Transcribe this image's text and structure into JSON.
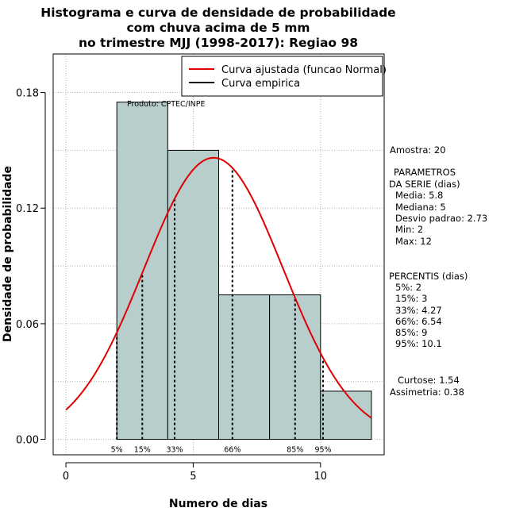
{
  "chart_data": {
    "type": "bar",
    "title": [
      "Histograma e curva de densidade de probabilidade",
      "com chuva acima de 5 mm",
      "no trimestre MJJ (1998-2017): Regiao 98"
    ],
    "xlabel": "Numero de dias",
    "ylabel": "Densidade de probabilidade",
    "xlim": [
      -0.5,
      12.5
    ],
    "ylim": [
      -0.008,
      0.2
    ],
    "x_ticks": [
      0,
      5,
      10
    ],
    "y_ticks": [
      0.0,
      0.06,
      0.12,
      0.18
    ],
    "x_tick_labels": [
      "0",
      "5",
      "10"
    ],
    "y_tick_labels": [
      "0.00",
      "0.06",
      "0.12",
      "0.18"
    ],
    "grid": true,
    "bins": [
      {
        "start": 2,
        "end": 4,
        "density": 0.175
      },
      {
        "start": 4,
        "end": 6,
        "density": 0.15
      },
      {
        "start": 6,
        "end": 8,
        "density": 0.075
      },
      {
        "start": 8,
        "end": 10,
        "density": 0.075
      },
      {
        "start": 10,
        "end": 12,
        "density": 0.025
      }
    ],
    "bar_color": "#b8cecd",
    "normal_fit": {
      "mean": 5.8,
      "sd": 2.73,
      "color": "#e00000",
      "x_range": [
        0,
        12
      ]
    },
    "percentiles": [
      {
        "label": "5%",
        "x": 2
      },
      {
        "label": "15%",
        "x": 3
      },
      {
        "label": "33%",
        "x": 4.27
      },
      {
        "label": "66%",
        "x": 6.54
      },
      {
        "label": "85%",
        "x": 9
      },
      {
        "label": "95%",
        "x": 10.1
      }
    ],
    "legend": [
      {
        "label": "Curva ajustada (funcao Normal)",
        "color": "#e00000"
      },
      {
        "label": "Curva empirica",
        "color": "#000000"
      }
    ],
    "legend_position": "top-right",
    "source_note": "Produto: CPTEC/INPE"
  },
  "stats": {
    "amostra": "Amostra: 20",
    "parametros": [
      "PARAMETROS",
      "DA SERIE (dias)",
      "Media: 5.8",
      "Mediana: 5",
      "Desvio padrao: 2.73",
      "Min: 2",
      "Max: 12"
    ],
    "percentis": [
      "PERCENTIS (dias)",
      "5%: 2",
      "15%: 3",
      "33%: 4.27",
      "66%: 6.54",
      "85%: 9",
      "95%: 10.1"
    ],
    "formato": [
      "Curtose: 1.54",
      "Assimetria: 0.38"
    ]
  }
}
